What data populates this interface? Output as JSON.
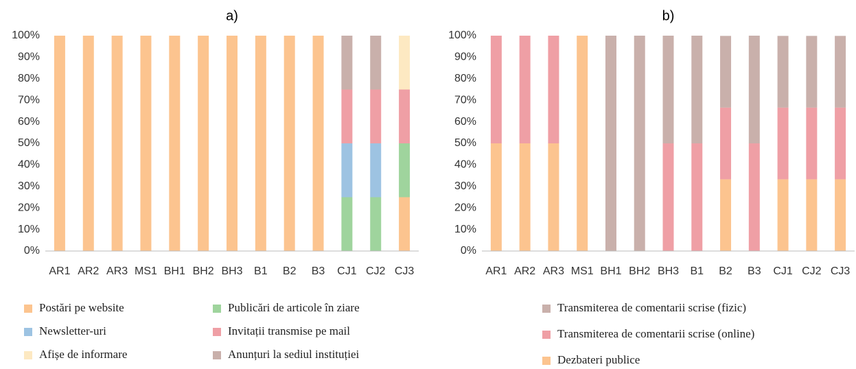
{
  "chart_data": [
    {
      "type": "stacked_bar",
      "title": "a)",
      "categories": [
        "AR1",
        "AR2",
        "AR3",
        "MS1",
        "BH1",
        "BH2",
        "BH3",
        "B1",
        "B2",
        "B3",
        "CJ1",
        "CJ2",
        "CJ3"
      ],
      "series": [
        {
          "name": "Postări pe website",
          "color": "#fcc48f",
          "values": [
            100,
            100,
            100,
            100,
            100,
            100,
            100,
            100,
            100,
            100,
            0,
            0,
            25
          ]
        },
        {
          "name": "Publicări de articole în ziare",
          "color": "#9fd49d",
          "values": [
            0,
            0,
            0,
            0,
            0,
            0,
            0,
            0,
            0,
            0,
            25,
            25,
            25
          ]
        },
        {
          "name": "Newsletter-uri",
          "color": "#9dc3e2",
          "values": [
            0,
            0,
            0,
            0,
            0,
            0,
            0,
            0,
            0,
            0,
            25,
            25,
            0
          ]
        },
        {
          "name": "Invitații transmise pe mail",
          "color": "#ef9fa5",
          "values": [
            0,
            0,
            0,
            0,
            0,
            0,
            0,
            0,
            0,
            0,
            25,
            25,
            25
          ]
        },
        {
          "name": "Afișe de informare",
          "color": "#fde9c2",
          "values": [
            0,
            0,
            0,
            0,
            0,
            0,
            0,
            0,
            0,
            0,
            0,
            0,
            25
          ]
        },
        {
          "name": "Anunțuri la sediul instituției",
          "color": "#c9b0ab",
          "values": [
            0,
            0,
            0,
            0,
            0,
            0,
            0,
            0,
            0,
            0,
            25,
            25,
            0
          ]
        }
      ],
      "ylim": [
        0,
        100
      ],
      "yticks": [
        {
          "value": 0,
          "label": "0%"
        },
        {
          "value": 10,
          "label": "10%"
        },
        {
          "value": 20,
          "label": "20%"
        },
        {
          "value": 30,
          "label": "30%"
        },
        {
          "value": 40,
          "label": "40%"
        },
        {
          "value": 50,
          "label": "50%"
        },
        {
          "value": 60,
          "label": "60%"
        },
        {
          "value": 70,
          "label": "70%"
        },
        {
          "value": 80,
          "label": "80%"
        },
        {
          "value": 90,
          "label": "90%"
        },
        {
          "value": 100,
          "label": "100%"
        }
      ],
      "grid": false
    },
    {
      "type": "stacked_bar",
      "title": "b)",
      "categories": [
        "AR1",
        "AR2",
        "AR3",
        "MS1",
        "BH1",
        "BH2",
        "BH3",
        "B1",
        "B2",
        "B3",
        "CJ1",
        "CJ2",
        "CJ3"
      ],
      "series": [
        {
          "name": "Dezbateri publice",
          "color": "#fcc48f",
          "values": [
            50,
            50,
            50,
            100,
            0,
            0,
            0,
            0,
            33.3,
            0,
            33.3,
            33.3,
            33.3
          ]
        },
        {
          "name": "Transmiterea de comentarii scrise (online)",
          "color": "#ef9fa5",
          "values": [
            50,
            50,
            50,
            0,
            0,
            0,
            50,
            50,
            33.3,
            50,
            33.3,
            33.3,
            33.3
          ]
        },
        {
          "name": "Transmiterea de comentarii scrise (fizic)",
          "color": "#c9b0ab",
          "values": [
            0,
            0,
            0,
            0,
            100,
            100,
            50,
            50,
            33.3,
            50,
            33.3,
            33.3,
            33.3
          ]
        }
      ],
      "ylim": [
        0,
        100
      ],
      "yticks": [
        {
          "value": 0,
          "label": "0%"
        },
        {
          "value": 10,
          "label": "10%"
        },
        {
          "value": 20,
          "label": "20%"
        },
        {
          "value": 30,
          "label": "30%"
        },
        {
          "value": 40,
          "label": "40%"
        },
        {
          "value": 50,
          "label": "50%"
        },
        {
          "value": 60,
          "label": "60%"
        },
        {
          "value": 70,
          "label": "70%"
        },
        {
          "value": 80,
          "label": "80%"
        },
        {
          "value": 90,
          "label": "90%"
        },
        {
          "value": 100,
          "label": "100%"
        }
      ],
      "grid": false
    }
  ]
}
